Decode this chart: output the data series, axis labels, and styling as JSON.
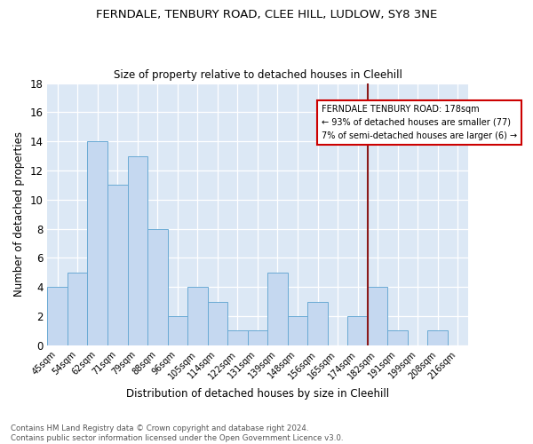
{
  "title1": "FERNDALE, TENBURY ROAD, CLEE HILL, LUDLOW, SY8 3NE",
  "title2": "Size of property relative to detached houses in Cleehill",
  "xlabel": "Distribution of detached houses by size in Cleehill",
  "ylabel": "Number of detached properties",
  "footnote": "Contains HM Land Registry data © Crown copyright and database right 2024.\nContains public sector information licensed under the Open Government Licence v3.0.",
  "categories": [
    "45sqm",
    "54sqm",
    "62sqm",
    "71sqm",
    "79sqm",
    "88sqm",
    "96sqm",
    "105sqm",
    "114sqm",
    "122sqm",
    "131sqm",
    "139sqm",
    "148sqm",
    "156sqm",
    "165sqm",
    "174sqm",
    "182sqm",
    "191sqm",
    "199sqm",
    "208sqm",
    "216sqm"
  ],
  "values": [
    4,
    5,
    14,
    11,
    13,
    8,
    2,
    4,
    3,
    1,
    1,
    5,
    2,
    3,
    0,
    2,
    4,
    1,
    0,
    1,
    0
  ],
  "bar_color": "#c5d8f0",
  "bar_edge_color": "#6aaad4",
  "vline_color": "#8b1a1a",
  "annotation_title": "FERNDALE TENBURY ROAD: 178sqm",
  "annotation_line1": "← 93% of detached houses are smaller (77)",
  "annotation_line2": "7% of semi-detached houses are larger (6) →",
  "annotation_box_color": "#ffffff",
  "annotation_box_edge": "#cc0000",
  "ylim": [
    0,
    18
  ],
  "yticks": [
    0,
    2,
    4,
    6,
    8,
    10,
    12,
    14,
    16,
    18
  ],
  "bg_color": "#dce8f5",
  "fig_bg_color": "#ffffff"
}
